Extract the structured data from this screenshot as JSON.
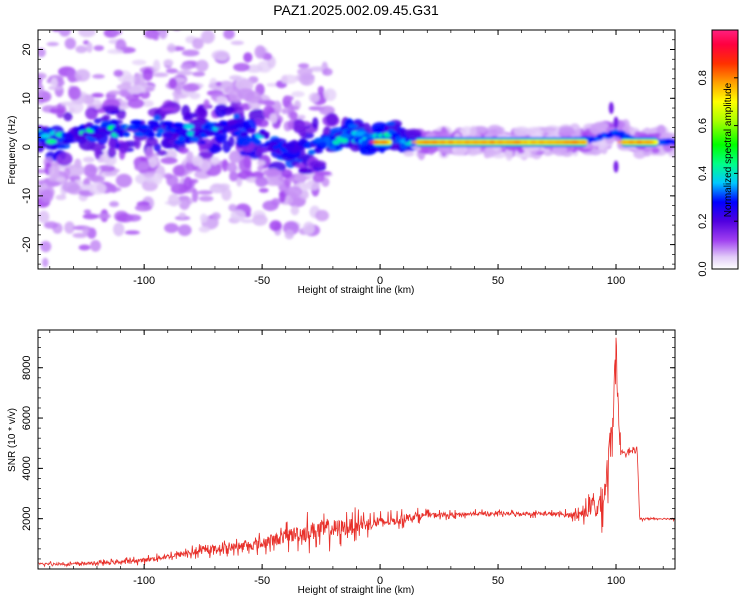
{
  "figure": {
    "title": "PAZ1.2025.002.09.45.G31"
  },
  "chart_data": [
    {
      "type": "heatmap",
      "xlabel": "Height of straight line (km)",
      "ylabel": "Frequency (Hz)",
      "xlim": [
        -145,
        125
      ],
      "ylim": [
        -25,
        24
      ],
      "xticks": [
        -100,
        -50,
        0,
        50,
        100
      ],
      "yticks": [
        -20,
        -10,
        0,
        10,
        20
      ],
      "colorbar": {
        "label": "Normalized spectral amplitude",
        "range": [
          0.0,
          1.0
        ],
        "ticks": [
          0.0,
          0.2,
          0.4,
          0.6,
          0.8
        ],
        "colormap": "rainbow-lavender-to-pink"
      },
      "ridge": [
        {
          "x": -140,
          "y": 2
        },
        {
          "x": -120,
          "y": 3
        },
        {
          "x": -100,
          "y": 4
        },
        {
          "x": -80,
          "y": 3
        },
        {
          "x": -60,
          "y": 4
        },
        {
          "x": -50,
          "y": 2
        },
        {
          "x": -40,
          "y": -1
        },
        {
          "x": -30,
          "y": 0
        },
        {
          "x": -20,
          "y": 1
        },
        {
          "x": -12,
          "y": 3
        },
        {
          "x": -5,
          "y": 1
        },
        {
          "x": 5,
          "y": 3
        },
        {
          "x": 10,
          "y": 1
        },
        {
          "x": 20,
          "y": 1
        },
        {
          "x": 60,
          "y": 1
        },
        {
          "x": 90,
          "y": 1.5
        },
        {
          "x": 100,
          "y": 3
        },
        {
          "x": 110,
          "y": 1
        },
        {
          "x": 125,
          "y": 1
        }
      ],
      "band_segments": [
        {
          "x0": -3,
          "x1": 5,
          "y": 1,
          "peak": 0.9
        },
        {
          "x0": 15,
          "x1": 88,
          "y": 1,
          "peak": 0.85
        },
        {
          "x0": 102,
          "x1": 118,
          "y": 1,
          "peak": 0.85
        }
      ],
      "grid": false
    },
    {
      "type": "line",
      "xlabel": "Height of straight line (km)",
      "ylabel": "SNR (10 * v/v)",
      "xlim": [
        -145,
        125
      ],
      "ylim": [
        0,
        9500
      ],
      "xticks": [
        -100,
        -50,
        0,
        50,
        100
      ],
      "yticks": [
        2000,
        4000,
        6000,
        8000
      ],
      "color": "#e8302a",
      "x": [
        -145,
        -130,
        -115,
        -100,
        -90,
        -80,
        -70,
        -60,
        -50,
        -45,
        -40,
        -35,
        -30,
        -25,
        -20,
        -15,
        -10,
        -5,
        0,
        5,
        10,
        15,
        20,
        30,
        40,
        50,
        60,
        70,
        80,
        85,
        88,
        90,
        92,
        95,
        97,
        99,
        100,
        101,
        102,
        103,
        104,
        105,
        107,
        109,
        110,
        112,
        115,
        120,
        125
      ],
      "values": [
        200,
        200,
        250,
        350,
        500,
        650,
        800,
        900,
        1000,
        1150,
        1300,
        1400,
        1500,
        1550,
        1600,
        1650,
        1750,
        1800,
        1850,
        1900,
        2000,
        2100,
        2150,
        2150,
        2200,
        2200,
        2200,
        2200,
        2150,
        2200,
        2300,
        2500,
        2400,
        3000,
        4500,
        6500,
        8500,
        6000,
        4700,
        4700,
        4600,
        4700,
        4650,
        4700,
        2000,
        2000,
        2000,
        2000,
        2000
      ],
      "noise": [
        100,
        120,
        150,
        200,
        250,
        300,
        350,
        400,
        500,
        600,
        700,
        800,
        900,
        950,
        900,
        800,
        700,
        600,
        500,
        450,
        400,
        350,
        250,
        200,
        180,
        180,
        180,
        180,
        250,
        400,
        700,
        1000,
        1200,
        1500,
        1800,
        2000,
        2000,
        1500,
        300,
        200,
        200,
        200,
        200,
        200,
        100,
        80,
        80,
        80,
        80
      ],
      "grid": false
    }
  ]
}
